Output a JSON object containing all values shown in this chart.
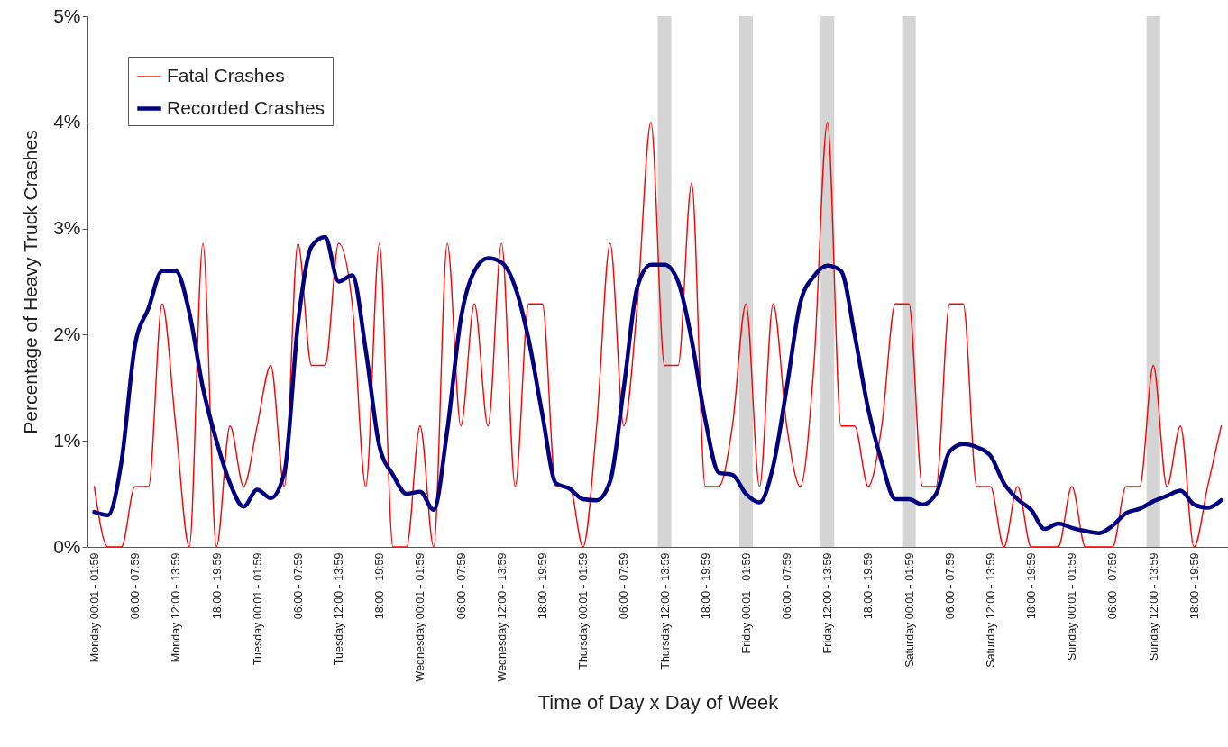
{
  "chart_data": {
    "type": "line",
    "xlabel": "Time of Day x Day of Week",
    "ylabel": "Percentage of Heavy Truck Crashes",
    "categories": [
      "Monday 00:01 - 01:59",
      null,
      null,
      "06:00 - 07:59",
      null,
      null,
      "Monday 12:00 - 13:59",
      null,
      null,
      "18:00 - 19:59",
      null,
      null,
      "Tuesday 00:01 - 01:59",
      null,
      null,
      "06:00 - 07:59",
      null,
      null,
      "Tuesday 12:00 - 13:59",
      null,
      null,
      "18:00 - 19:59",
      null,
      null,
      "Wednesday 00:01 - 01:59",
      null,
      null,
      "06:00 - 07:59",
      null,
      null,
      "Wednesday 12:00 - 13:59",
      null,
      null,
      "18:00 - 19:59",
      null,
      null,
      "Thursday 00:01 - 01:59",
      null,
      null,
      "06:00 - 07:59",
      null,
      null,
      "Thursday 12:00 - 13:59",
      null,
      null,
      "18:00 - 19:59",
      null,
      null,
      "Friday 00:01 - 01:59",
      null,
      null,
      "06:00 - 07:59",
      null,
      null,
      "Friday 12:00 - 13:59",
      null,
      null,
      "18:00 - 19:59",
      null,
      null,
      "Saturday 00:01 - 01:59",
      null,
      null,
      "06:00 - 07:59",
      null,
      null,
      "Saturday 12:00 - 13:59",
      null,
      null,
      "18:00 - 19:59",
      null,
      null,
      "Sunday 00:01 - 01:59",
      null,
      null,
      "06:00 - 07:59",
      null,
      null,
      "Sunday 12:00 - 13:59",
      null,
      null,
      "18:00 - 19:59",
      null,
      null
    ],
    "ylim": [
      0,
      5
    ],
    "yticks": [
      {
        "value": 0,
        "label": "0%"
      },
      {
        "value": 1,
        "label": "1%"
      },
      {
        "value": 2,
        "label": "2%"
      },
      {
        "value": 3,
        "label": "3%"
      },
      {
        "value": 4,
        "label": "4%"
      },
      {
        "value": 5,
        "label": "5%"
      }
    ],
    "grid": false,
    "legend": "top left",
    "bands": [
      {
        "axis": "x",
        "from": "Thursday 12:00 - 13:59",
        "to": "Thursday 12:00 - 13:59",
        "color": "#d4d4d4"
      },
      {
        "axis": "x",
        "from": "Friday 00:01 - 01:59",
        "to": "Friday 00:01 - 01:59",
        "color": "#d4d4d4"
      },
      {
        "axis": "x",
        "from": "Friday 12:00 - 13:59",
        "to": "Friday 12:00 - 13:59",
        "color": "#d4d4d4"
      },
      {
        "axis": "x",
        "from": "Saturday 00:01 - 01:59",
        "to": "Saturday 00:01 - 01:59",
        "color": "#d4d4d4"
      },
      {
        "axis": "x",
        "from": "Sunday 12:00 - 13:59",
        "to": "Sunday 12:00 - 13:59",
        "color": "#d4d4d4"
      }
    ],
    "series": [
      {
        "name": "Fatal Crashes",
        "color": "#ff0000",
        "values": [
          0.57,
          0,
          0,
          0.57,
          0.57,
          2.29,
          1.14,
          0,
          2.86,
          0,
          1.14,
          0.57,
          1.14,
          1.71,
          0.57,
          2.86,
          1.71,
          1.71,
          2.86,
          2.29,
          0.57,
          2.86,
          0,
          0,
          1.14,
          0,
          2.86,
          1.14,
          2.29,
          1.14,
          2.86,
          0.57,
          2.29,
          2.29,
          0.57,
          0.57,
          0,
          1.14,
          2.86,
          1.14,
          2.29,
          4.0,
          1.71,
          1.71,
          3.43,
          0.57,
          0.57,
          1.14,
          2.29,
          0.57,
          2.29,
          1.14,
          0.57,
          1.71,
          4.0,
          1.14,
          1.14,
          0.57,
          1.14,
          2.29,
          2.29,
          0.57,
          0.57,
          2.29,
          2.29,
          0.57,
          0.57,
          0,
          0.57,
          0,
          0,
          0,
          0.57,
          0,
          0,
          0,
          0.57,
          0.57,
          1.71,
          0.57,
          1.14,
          0,
          0.57,
          1.14
        ]
      },
      {
        "name": "Recorded Crashes",
        "color": "#000080",
        "values": [
          0.33,
          0.3,
          0.8,
          1.9,
          2.25,
          2.6,
          2.6,
          2.21,
          1.5,
          1.0,
          0.6,
          0.38,
          0.54,
          0.46,
          0.7,
          2.1,
          2.83,
          2.92,
          2.5,
          2.56,
          1.85,
          0.95,
          0.68,
          0.5,
          0.52,
          0.35,
          1.1,
          2.15,
          2.6,
          2.72,
          2.68,
          2.45,
          1.95,
          1.25,
          0.6,
          0.55,
          0.45,
          0.44,
          0.62,
          1.5,
          2.45,
          2.66,
          2.66,
          2.5,
          1.95,
          1.2,
          0.7,
          0.68,
          0.5,
          0.42,
          0.76,
          1.5,
          2.3,
          2.55,
          2.65,
          2.6,
          2.0,
          1.3,
          0.8,
          0.45,
          0.45,
          0.4,
          0.5,
          0.9,
          0.97,
          0.94,
          0.86,
          0.6,
          0.45,
          0.35,
          0.17,
          0.22,
          0.18,
          0.15,
          0.13,
          0.2,
          0.32,
          0.36,
          0.43,
          0.48,
          0.53,
          0.4,
          0.37,
          0.44
        ]
      }
    ]
  }
}
